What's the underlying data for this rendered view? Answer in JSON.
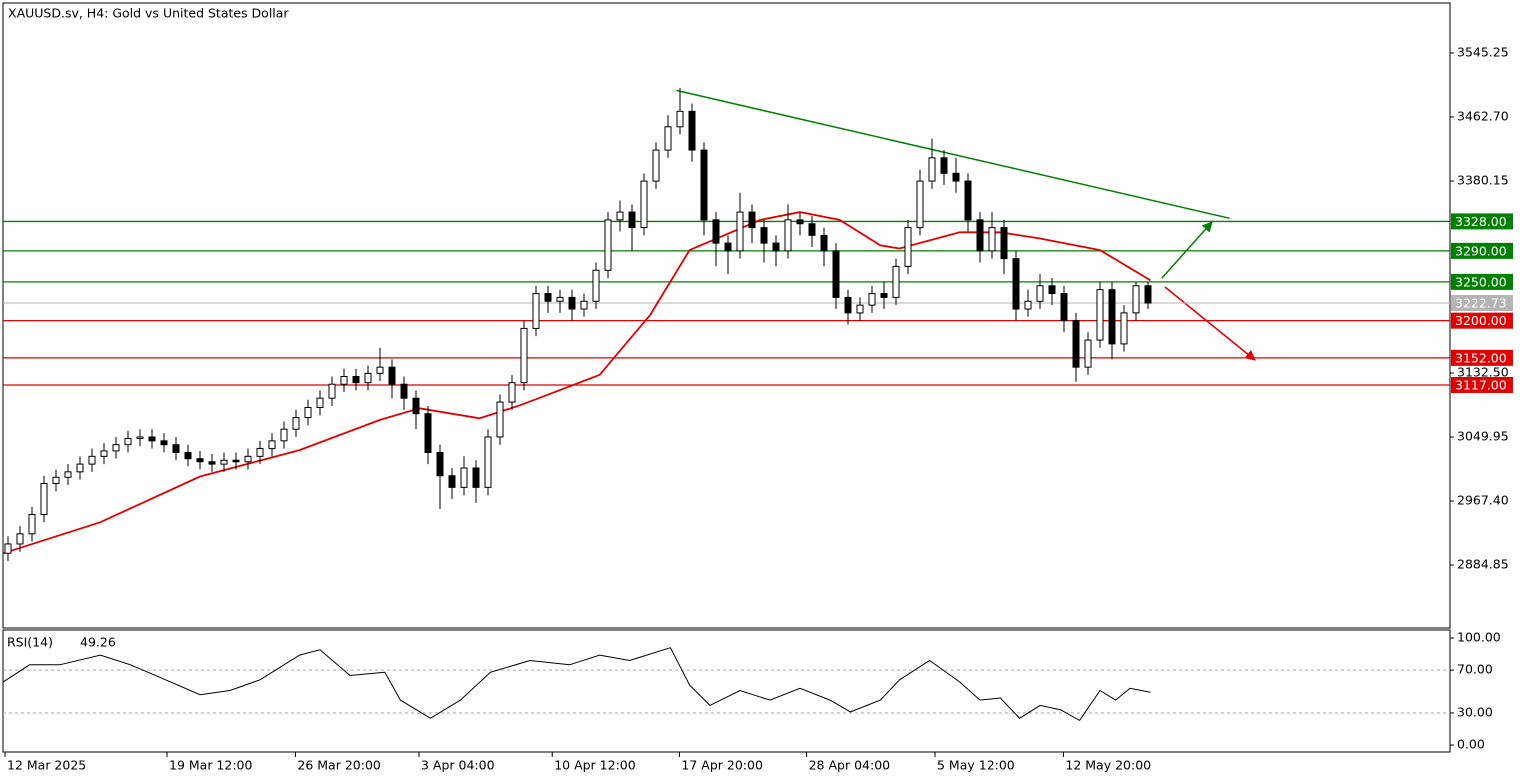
{
  "chart_data": {
    "type": "candlestick",
    "title": "XAUUSD.sv, H4:  Gold vs United States Dollar",
    "ylim": [
      2803.6,
      3609.7
    ],
    "yticks": [
      3545.25,
      {
        "value": 3462.7,
        "label": "3462.70"
      },
      3380.15,
      {
        "value": 3132.5,
        "label": "3132.50"
      },
      3049.95,
      {
        "value": 2967.4,
        "label": "2967.40"
      },
      2884.85
    ],
    "xticks": [
      {
        "value": 0,
        "label": "12 Mar 2025"
      },
      {
        "value": 13.5,
        "label": "19 Mar 12:00"
      },
      {
        "value": 24.2,
        "label": "26 Mar 20:00"
      },
      {
        "value": 34.5,
        "label": "3 Apr 04:00"
      },
      {
        "value": 45.6,
        "label": "10 Apr 12:00"
      },
      {
        "value": 56.2,
        "label": "17 Apr 20:00"
      },
      {
        "value": 66.8,
        "label": "28 Apr 04:00"
      },
      {
        "value": 77.5,
        "label": "5 May 12:00"
      },
      {
        "value": 88.2,
        "label": "12 May 20:00"
      }
    ],
    "up_color": "#ffffff",
    "down_color": "#000000",
    "open": [
      2900,
      2912,
      2925,
      2950,
      2990,
      2998,
      3005,
      3015,
      3025,
      3032,
      3040,
      3048,
      3050,
      3045,
      3040,
      3030,
      3022,
      3018,
      3015,
      3020,
      3018,
      3025,
      3035,
      3045,
      3060,
      3075,
      3088,
      3100,
      3118,
      3128,
      3120,
      3132,
      3140,
      3118,
      3100,
      3080,
      3030,
      3000,
      2985,
      3010,
      2985,
      3050,
      3095,
      3120,
      3190,
      3235,
      3225,
      3230,
      3215,
      3225,
      3265,
      3330,
      3340,
      3320,
      3380,
      3420,
      3450,
      3470,
      3420,
      3330,
      3300,
      3290,
      3340,
      3320,
      3300,
      3290,
      3330,
      3325,
      3310,
      3290,
      3230,
      3210,
      3220,
      3235,
      3230,
      3270,
      3320,
      3380,
      3410,
      3390,
      3380,
      3330,
      3290,
      3320,
      3280,
      3215,
      3225,
      3245,
      3235,
      3200,
      3140,
      3175,
      3240,
      3170,
      3210,
      3245
    ],
    "high": [
      2922,
      2935,
      2960,
      3000,
      3008,
      3015,
      3025,
      3035,
      3042,
      3050,
      3058,
      3060,
      3060,
      3055,
      3050,
      3040,
      3032,
      3028,
      3030,
      3030,
      3035,
      3045,
      3055,
      3070,
      3085,
      3098,
      3110,
      3128,
      3138,
      3138,
      3142,
      3165,
      3150,
      3128,
      3110,
      3090,
      3040,
      3010,
      3025,
      3020,
      3060,
      3105,
      3130,
      3200,
      3245,
      3245,
      3240,
      3240,
      3235,
      3275,
      3340,
      3355,
      3350,
      3390,
      3430,
      3465,
      3500,
      3480,
      3430,
      3340,
      3310,
      3365,
      3350,
      3330,
      3310,
      3350,
      3340,
      3335,
      3320,
      3300,
      3240,
      3230,
      3245,
      3250,
      3280,
      3330,
      3395,
      3435,
      3420,
      3410,
      3390,
      3340,
      3340,
      3330,
      3290,
      3240,
      3260,
      3255,
      3245,
      3210,
      3185,
      3250,
      3250,
      3220,
      3250,
      3250
    ],
    "low": [
      2890,
      2902,
      2915,
      2940,
      2980,
      2988,
      2995,
      3005,
      3015,
      3022,
      3030,
      3038,
      3035,
      3030,
      3020,
      3012,
      3008,
      3005,
      3005,
      3008,
      3008,
      3015,
      3025,
      3035,
      3050,
      3065,
      3078,
      3090,
      3108,
      3110,
      3110,
      3122,
      3100,
      3085,
      3060,
      3015,
      2957,
      2970,
      2975,
      2965,
      2975,
      3040,
      3085,
      3110,
      3180,
      3210,
      3210,
      3200,
      3205,
      3215,
      3255,
      3315,
      3290,
      3310,
      3370,
      3410,
      3440,
      3405,
      3310,
      3270,
      3260,
      3280,
      3300,
      3275,
      3270,
      3280,
      3310,
      3295,
      3270,
      3215,
      3195,
      3200,
      3210,
      3215,
      3220,
      3260,
      3310,
      3370,
      3375,
      3365,
      3315,
      3275,
      3280,
      3260,
      3200,
      3205,
      3215,
      3220,
      3185,
      3121,
      3130,
      3165,
      3150,
      3160,
      3200,
      3215
    ],
    "close": [
      2912,
      2925,
      2950,
      2990,
      2998,
      3005,
      3015,
      3025,
      3032,
      3040,
      3048,
      3050,
      3045,
      3040,
      3030,
      3022,
      3018,
      3015,
      3020,
      3018,
      3025,
      3035,
      3045,
      3060,
      3075,
      3088,
      3100,
      3118,
      3128,
      3120,
      3132,
      3140,
      3118,
      3100,
      3080,
      3030,
      3000,
      2985,
      3010,
      2985,
      3050,
      3095,
      3120,
      3190,
      3235,
      3225,
      3230,
      3215,
      3225,
      3265,
      3330,
      3340,
      3320,
      3380,
      3420,
      3450,
      3470,
      3420,
      3330,
      3300,
      3290,
      3340,
      3320,
      3300,
      3290,
      3330,
      3325,
      3310,
      3290,
      3230,
      3210,
      3220,
      3235,
      3230,
      3270,
      3320,
      3380,
      3410,
      3390,
      3380,
      3330,
      3290,
      3320,
      3280,
      3215,
      3225,
      3245,
      3235,
      3200,
      3140,
      3175,
      3240,
      3170,
      3210,
      3245,
      3222.73
    ],
    "last_color": "#b4b4b4",
    "moving_average": {
      "color": "#e00000",
      "x": [
        -0.4,
        7.7,
        16,
        24.3,
        31,
        34.3,
        39.3,
        42.7,
        49.3,
        53.5,
        56.8,
        62.7,
        66,
        69.3,
        72.7,
        74.3,
        79.3,
        82.7,
        86,
        91,
        95.2
      ],
      "values": [
        2900,
        2940,
        2999,
        3033,
        3072,
        3087,
        3074,
        3091,
        3130,
        3207,
        3291,
        3330,
        3340,
        3330,
        3297,
        3293,
        3314,
        3314,
        3306,
        3291,
        3252
      ]
    },
    "trendline": {
      "color": "#008000",
      "x": [
        55.7,
        101.8
      ],
      "values": [
        3497,
        3332
      ]
    },
    "levels": [
      {
        "value": 3328,
        "label": "3328.00",
        "color": "#008000"
      },
      {
        "value": 3290,
        "label": "3290.00",
        "color": "#008000"
      },
      {
        "value": 3250,
        "label": "3250.00",
        "color": "#008000"
      },
      {
        "value": 3200,
        "label": "3200.00",
        "color": "#e00000"
      },
      {
        "value": 3152,
        "label": "3152.00",
        "color": "#e00000"
      },
      {
        "value": 3117,
        "label": "3117.00",
        "color": "#e00000"
      }
    ],
    "indicator": {
      "title": "RSI(14)",
      "color": "#000000",
      "ylim": [
        -6.5,
        107.5
      ],
      "yticks": [
        {
          "value": 100,
          "label": "100.00"
        },
        {
          "value": 70,
          "label": "70.00"
        },
        {
          "value": 30,
          "label": "30.00"
        },
        {
          "value": 0,
          "label": "0.00"
        }
      ],
      "levels": [
        70,
        30
      ],
      "x": [
        -0.4,
        1.8,
        4.3,
        7.7,
        10.2,
        12.7,
        16,
        18.5,
        21,
        24.3,
        26,
        28.5,
        31.4,
        32.7,
        35.2,
        37.7,
        40.2,
        43.5,
        46.8,
        49.3,
        51.8,
        55.2,
        56.8,
        58.5,
        61,
        63.5,
        66,
        68.5,
        70.2,
        72.7,
        74.3,
        76.8,
        79.3,
        81,
        82.7,
        84.3,
        86,
        87.7,
        89.3,
        91,
        92.3,
        93.5,
        95.2
      ],
      "values": [
        59,
        75,
        75,
        84,
        75,
        63,
        47,
        51,
        61,
        84,
        89,
        65,
        68,
        42,
        25,
        42,
        68,
        79,
        75,
        84,
        79,
        91,
        56,
        37,
        51,
        42,
        53,
        42,
        31,
        42,
        61,
        79,
        59,
        42,
        44,
        25,
        37,
        33,
        23,
        51,
        42,
        53,
        49.26
      ]
    }
  }
}
